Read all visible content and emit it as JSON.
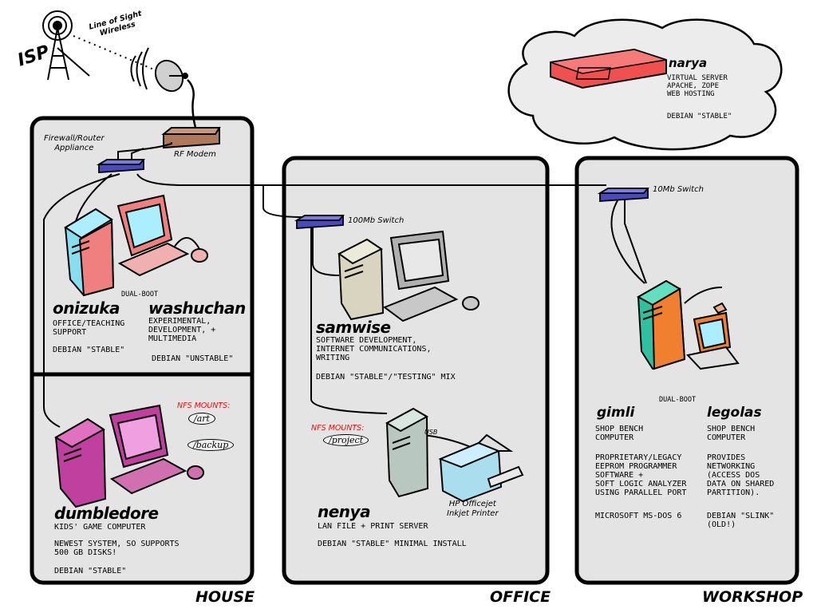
{
  "isp_label": "ISP",
  "wireless_label": "Line of Sight\nWireless",
  "devices": {
    "rf_modem": "RF Modem",
    "firewall": "Firewall/Router\nAppliance",
    "switch_100": "100Mb Switch",
    "switch_10": "10Mb Switch",
    "printer": "HP Officejet\nInkjet Printer",
    "usb": "USB"
  },
  "narya": {
    "name": "narya",
    "desc": "VIRTUAL SERVER\nAPACHE, ZOPE\nWEB HOSTING",
    "os": "DEBIAN \"STABLE\""
  },
  "rooms": {
    "house": "HOUSE",
    "office": "OFFICE",
    "workshop": "WORKSHOP"
  },
  "dual_boot": "DUAL-BOOT",
  "nfs_label": "NFS MOUNTS:",
  "mounts": {
    "art": "/art",
    "backup": "/backup",
    "project": "/project"
  },
  "hosts": {
    "onizuka": {
      "name": "onizuka",
      "desc": "OFFICE/TEACHING\nSUPPORT",
      "os": "DEBIAN \"STABLE\""
    },
    "washuchan": {
      "name": "washuchan",
      "desc": "EXPERIMENTAL,\nDEVELOPMENT, +\nMULTIMEDIA",
      "os": "DEBIAN \"UNSTABLE\""
    },
    "dumbledore": {
      "name": "dumbledore",
      "desc": "KIDS' GAME COMPUTER",
      "desc2": "NEWEST SYSTEM, SO SUPPORTS\n500 GB DISKS!",
      "os": "DEBIAN \"STABLE\""
    },
    "samwise": {
      "name": "samwise",
      "desc": "SOFTWARE DEVELOPMENT,\nINTERNET COMMUNICATIONS,\nWRITING",
      "os": "DEBIAN \"STABLE\"/\"TESTING\" MIX"
    },
    "nenya": {
      "name": "nenya",
      "desc": "LAN FILE + PRINT SERVER",
      "os": "DEBIAN \"STABLE\" MINIMAL INSTALL"
    },
    "gimli": {
      "name": "gimli",
      "desc": "SHOP BENCH\nCOMPUTER",
      "desc2": "PROPRIETARY/LEGACY\nEEPROM PROGRAMMER\nSOFTWARE +\nSOFT LOGIC ANALYZER\nUSING PARALLEL PORT",
      "os": "MICROSOFT MS-DOS 6"
    },
    "legolas": {
      "name": "legolas",
      "desc": "SHOP BENCH\nCOMPUTER",
      "desc2": "PROVIDES\nNETWORKING\n(ACCESS DOS\nDATA ON SHARED\nPARTITION).",
      "os": "DEBIAN \"SLINK\"\n(OLD!)"
    }
  },
  "colors": {
    "switch": "#4a4ac0",
    "modem": "#b0785a",
    "narya": "#f05050",
    "room_bg": "#e4e4e4",
    "mount_red": "#e01010"
  }
}
